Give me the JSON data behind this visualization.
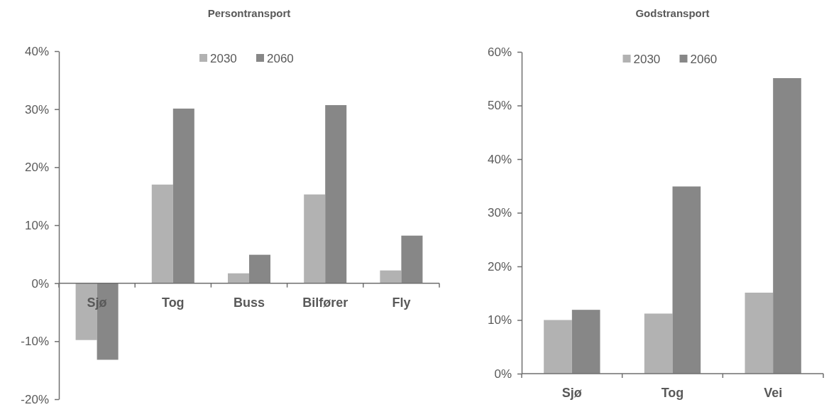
{
  "chart_data": [
    {
      "type": "bar",
      "title": "Persontransport",
      "categories": [
        "Sjø",
        "Tog",
        "Buss",
        "Bilfører",
        "Fly"
      ],
      "series": [
        {
          "name": "2030",
          "color": "#b2b2b2",
          "values": [
            -9.8,
            17.0,
            1.7,
            15.3,
            2.2
          ]
        },
        {
          "name": "2060",
          "color": "#878787",
          "values": [
            -13.2,
            30.1,
            4.9,
            30.7,
            8.2
          ]
        }
      ],
      "ylim": [
        -20,
        40
      ],
      "yticks": [
        {
          "value": -20,
          "label": "-20%"
        },
        {
          "value": -10,
          "label": "-10%"
        },
        {
          "value": 0,
          "label": "0%"
        },
        {
          "value": 10,
          "label": "10%"
        },
        {
          "value": 20,
          "label": "20%"
        },
        {
          "value": 30,
          "label": "30%"
        },
        {
          "value": 40,
          "label": "40%"
        }
      ],
      "grid": false,
      "legend": "top"
    },
    {
      "type": "bar",
      "title": "Godstransport",
      "categories": [
        "Sjø",
        "Tog",
        "Vei"
      ],
      "series": [
        {
          "name": "2030",
          "color": "#b2b2b2",
          "values": [
            10.0,
            11.2,
            15.1
          ]
        },
        {
          "name": "2060",
          "color": "#878787",
          "values": [
            11.9,
            34.9,
            55.1
          ]
        }
      ],
      "ylim": [
        0,
        60
      ],
      "yticks": [
        {
          "value": 0,
          "label": "0%"
        },
        {
          "value": 10,
          "label": "10%"
        },
        {
          "value": 20,
          "label": "20%"
        },
        {
          "value": 30,
          "label": "30%"
        },
        {
          "value": 40,
          "label": "40%"
        },
        {
          "value": 50,
          "label": "50%"
        },
        {
          "value": 60,
          "label": "60%"
        }
      ],
      "grid": false,
      "legend": "top"
    }
  ]
}
